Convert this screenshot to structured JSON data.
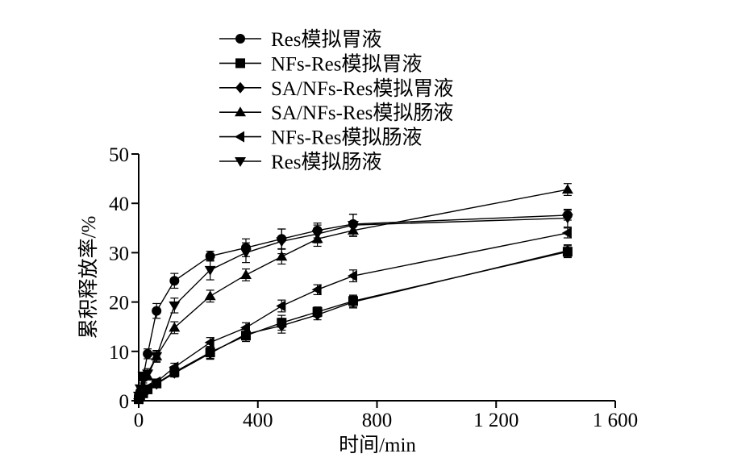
{
  "chart_data": {
    "type": "line",
    "xlabel": "时间/min",
    "ylabel": "累积释放率/%",
    "xlim": [
      0,
      1600
    ],
    "ylim": [
      0,
      50
    ],
    "xticks": [
      0,
      400,
      800,
      1200,
      1600
    ],
    "xtick_labels": [
      "0",
      "400",
      "800",
      "1 200",
      "1 600"
    ],
    "yticks": [
      0,
      10,
      20,
      30,
      40,
      50
    ],
    "ytick_labels": [
      "0",
      "10",
      "20",
      "30",
      "40",
      "50"
    ],
    "grid": false,
    "legend_position": "top-left",
    "series": [
      {
        "name": "Res模拟胃液",
        "marker": "circle",
        "x": [
          0,
          5,
          15,
          30,
          60,
          120,
          240,
          360,
          480,
          600,
          720,
          1440
        ],
        "y": [
          0.5,
          1.8,
          4.8,
          9.5,
          18.2,
          24.3,
          29.3,
          31.0,
          32.8,
          34.5,
          35.8,
          37.6
        ],
        "err": [
          0.3,
          0.5,
          0.8,
          1.0,
          1.5,
          1.5,
          1.0,
          1.8,
          2.0,
          1.5,
          2.0,
          1.0
        ]
      },
      {
        "name": "NFs-Res模拟胃液",
        "marker": "square",
        "x": [
          0,
          5,
          15,
          30,
          60,
          120,
          240,
          360,
          480,
          600,
          720,
          1440
        ],
        "y": [
          0.3,
          0.8,
          1.5,
          2.3,
          3.5,
          5.8,
          9.8,
          13.2,
          15.8,
          18.0,
          20.2,
          30.2
        ],
        "err": [
          0.2,
          0.3,
          0.5,
          0.5,
          0.6,
          0.8,
          1.2,
          1.2,
          1.5,
          1.0,
          1.2,
          1.2
        ]
      },
      {
        "name": "SA/NFs-Res模拟胃液",
        "marker": "diamond",
        "x": [
          0,
          5,
          15,
          30,
          60,
          120,
          240,
          360,
          480,
          600,
          720,
          1440
        ],
        "y": [
          0.3,
          0.8,
          1.4,
          2.2,
          3.4,
          5.6,
          9.6,
          13.5,
          15.2,
          17.4,
          20.0,
          30.4
        ],
        "err": [
          0.2,
          0.3,
          0.5,
          0.5,
          0.6,
          0.8,
          1.2,
          1.2,
          1.5,
          1.0,
          1.2,
          1.2
        ]
      },
      {
        "name": "SA/NFs-Res模拟肠液",
        "marker": "triangle-up",
        "x": [
          0,
          5,
          15,
          30,
          60,
          120,
          240,
          360,
          480,
          600,
          720,
          1440
        ],
        "y": [
          0.8,
          1.8,
          3.0,
          5.0,
          9.0,
          14.8,
          21.2,
          25.5,
          29.2,
          32.8,
          34.5,
          42.8
        ],
        "err": [
          0.3,
          0.5,
          0.6,
          0.8,
          1.0,
          1.2,
          1.2,
          1.2,
          1.5,
          1.5,
          1.2,
          1.2
        ]
      },
      {
        "name": "NFs-Res模拟肠液",
        "marker": "triangle-left",
        "x": [
          0,
          5,
          15,
          30,
          60,
          120,
          240,
          360,
          480,
          600,
          720,
          1440
        ],
        "y": [
          0.4,
          1.0,
          1.8,
          2.6,
          3.8,
          6.8,
          11.8,
          14.8,
          19.2,
          22.5,
          25.3,
          34.0
        ],
        "err": [
          0.2,
          0.3,
          0.5,
          0.5,
          0.6,
          0.8,
          1.0,
          1.0,
          1.2,
          1.0,
          1.2,
          1.0
        ]
      },
      {
        "name": "Res模拟肠液",
        "marker": "triangle-down",
        "x": [
          0,
          5,
          15,
          30,
          60,
          120,
          240,
          360,
          480,
          600,
          720,
          1440
        ],
        "y": [
          1.0,
          2.5,
          5.0,
          5.5,
          9.0,
          19.3,
          26.5,
          30.0,
          32.3,
          33.8,
          35.6,
          37.0
        ],
        "err": [
          0.4,
          0.6,
          0.8,
          1.0,
          1.2,
          1.5,
          2.0,
          2.0,
          2.5,
          1.8,
          2.2,
          1.8
        ]
      }
    ]
  }
}
